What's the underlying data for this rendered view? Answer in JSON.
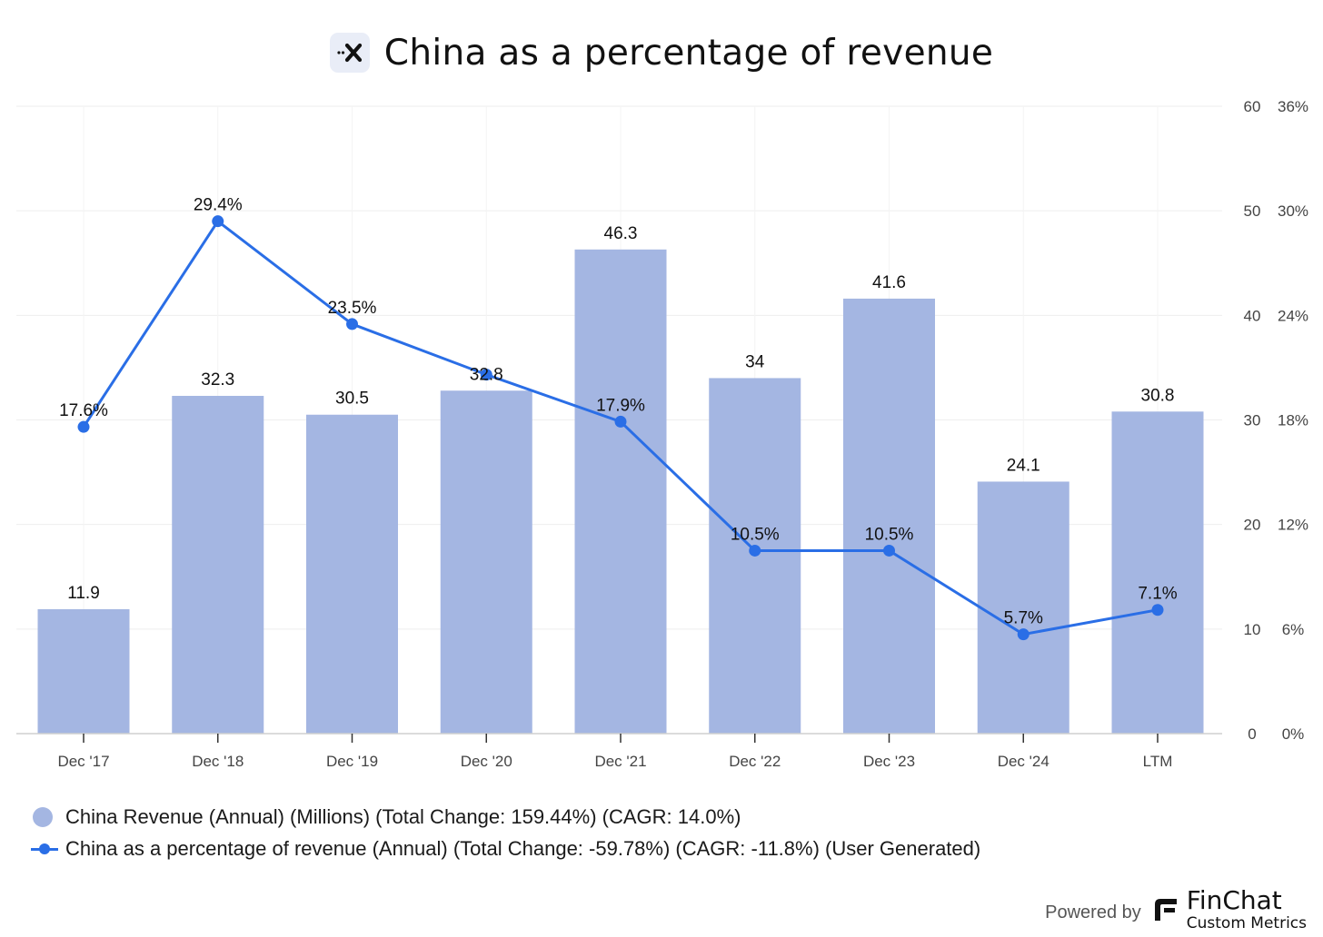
{
  "header": {
    "logo_text": "·x",
    "title": "China as a percentage of revenue"
  },
  "chart_data": {
    "type": "bar",
    "title": "China as a percentage of revenue",
    "categories": [
      "Dec '17",
      "Dec '18",
      "Dec '19",
      "Dec '20",
      "Dec '21",
      "Dec '22",
      "Dec '23",
      "Dec '24",
      "LTM"
    ],
    "series": [
      {
        "name": "China Revenue (Annual) (Millions)",
        "type": "bar",
        "axis": "left",
        "values": [
          11.9,
          32.3,
          30.5,
          32.8,
          46.3,
          34,
          41.6,
          24.1,
          30.8
        ],
        "labels": [
          "11.9",
          "32.3",
          "30.5",
          "32.8",
          "46.3",
          "34",
          "41.6",
          "24.1",
          "30.8"
        ]
      },
      {
        "name": "China as a percentage of revenue (Annual)",
        "type": "line",
        "axis": "right",
        "values": [
          17.6,
          29.4,
          23.5,
          20.6,
          17.9,
          10.5,
          10.5,
          5.7,
          7.1
        ],
        "labels": [
          "17.6%",
          "29.4%",
          "23.5%",
          "",
          "17.9%",
          "10.5%",
          "10.5%",
          "5.7%",
          "7.1%"
        ]
      }
    ],
    "y_left": {
      "range": [
        0,
        60
      ],
      "ticks": [
        "0",
        "10",
        "20",
        "30",
        "40",
        "50",
        "60"
      ]
    },
    "y_right": {
      "range": [
        0,
        36
      ],
      "ticks": [
        "0%",
        "6%",
        "12%",
        "18%",
        "24%",
        "30%",
        "36%"
      ]
    },
    "grid": true,
    "legend_position": "bottom-left"
  },
  "legend": {
    "bar_text": "China Revenue (Annual) (Millions) (Total Change: 159.44%) (CAGR: 14.0%)",
    "line_text": "China as a percentage of revenue (Annual) (Total Change: -59.78%) (CAGR: -11.8%) (User Generated)"
  },
  "footer": {
    "powered_by": "Powered by",
    "brand_name": "FinChat",
    "brand_sub": "Custom Metrics"
  },
  "colors": {
    "bar": "#a4b6e2",
    "line": "#2a6ee6",
    "grid": "#eeeeee",
    "axis": "#cfcfcf"
  }
}
